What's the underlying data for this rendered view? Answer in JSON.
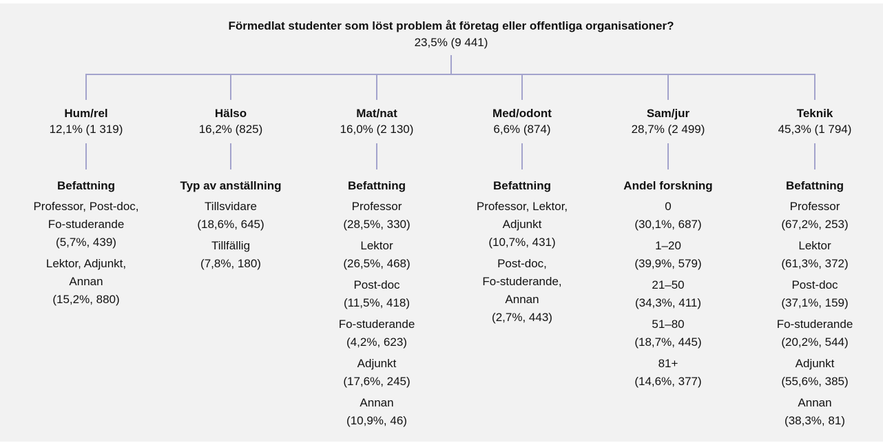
{
  "root": {
    "title": "Förmedlat studenter som löst problem åt företag eller offentliga organisationer?",
    "stat": "23,5%  (9 441)"
  },
  "branches": [
    {
      "name": "Hum/rel",
      "stat": "12,1%  (1 319)",
      "split": "Befattning",
      "leaves": [
        {
          "lines": [
            "Professor, Post-doc,",
            "Fo-studerande"
          ],
          "stat": "(5,7%, 439)"
        },
        {
          "lines": [
            "Lektor, Adjunkt,",
            "Annan"
          ],
          "stat": "(15,2%, 880)"
        }
      ]
    },
    {
      "name": "Hälso",
      "stat": "16,2%  (825)",
      "split": "Typ av anställning",
      "leaves": [
        {
          "lines": [
            "Tillsvidare"
          ],
          "stat": "(18,6%, 645)"
        },
        {
          "lines": [
            "Tillfällig"
          ],
          "stat": "(7,8%, 180)"
        }
      ]
    },
    {
      "name": "Mat/nat",
      "stat": "16,0%  (2 130)",
      "split": "Befattning",
      "leaves": [
        {
          "lines": [
            "Professor"
          ],
          "stat": "(28,5%, 330)"
        },
        {
          "lines": [
            "Lektor"
          ],
          "stat": "(26,5%, 468)"
        },
        {
          "lines": [
            "Post-doc"
          ],
          "stat": "(11,5%, 418)"
        },
        {
          "lines": [
            "Fo-studerande"
          ],
          "stat": "(4,2%, 623)"
        },
        {
          "lines": [
            "Adjunkt"
          ],
          "stat": "(17,6%, 245)"
        },
        {
          "lines": [
            "Annan"
          ],
          "stat": "(10,9%, 46)"
        }
      ]
    },
    {
      "name": "Med/odont",
      "stat": "6,6%  (874)",
      "split": "Befattning",
      "leaves": [
        {
          "lines": [
            "Professor, Lektor,",
            "Adjunkt"
          ],
          "stat": "(10,7%, 431)"
        },
        {
          "lines": [
            "Post-doc,",
            "Fo-studerande,",
            "Annan"
          ],
          "stat": "(2,7%, 443)"
        }
      ]
    },
    {
      "name": "Sam/jur",
      "stat": "28,7%  (2 499)",
      "split": "Andel forskning",
      "leaves": [
        {
          "lines": [
            "0"
          ],
          "stat": "(30,1%, 687)"
        },
        {
          "lines": [
            "1–20"
          ],
          "stat": "(39,9%, 579)"
        },
        {
          "lines": [
            "21–50"
          ],
          "stat": "(34,3%, 411)"
        },
        {
          "lines": [
            "51–80"
          ],
          "stat": "(18,7%, 445)"
        },
        {
          "lines": [
            "81+"
          ],
          "stat": "(14,6%, 377)"
        }
      ]
    },
    {
      "name": "Teknik",
      "stat": "45,3%  (1 794)",
      "split": "Befattning",
      "leaves": [
        {
          "lines": [
            "Professor"
          ],
          "stat": "(67,2%, 253)"
        },
        {
          "lines": [
            "Lektor"
          ],
          "stat": "(61,3%, 372)"
        },
        {
          "lines": [
            "Post-doc"
          ],
          "stat": "(37,1%, 159)"
        },
        {
          "lines": [
            "Fo-studerande"
          ],
          "stat": "(20,2%, 544)"
        },
        {
          "lines": [
            "Adjunkt"
          ],
          "stat": "(55,6%, 385)"
        },
        {
          "lines": [
            "Annan"
          ],
          "stat": "(38,3%, 81)"
        }
      ]
    }
  ]
}
